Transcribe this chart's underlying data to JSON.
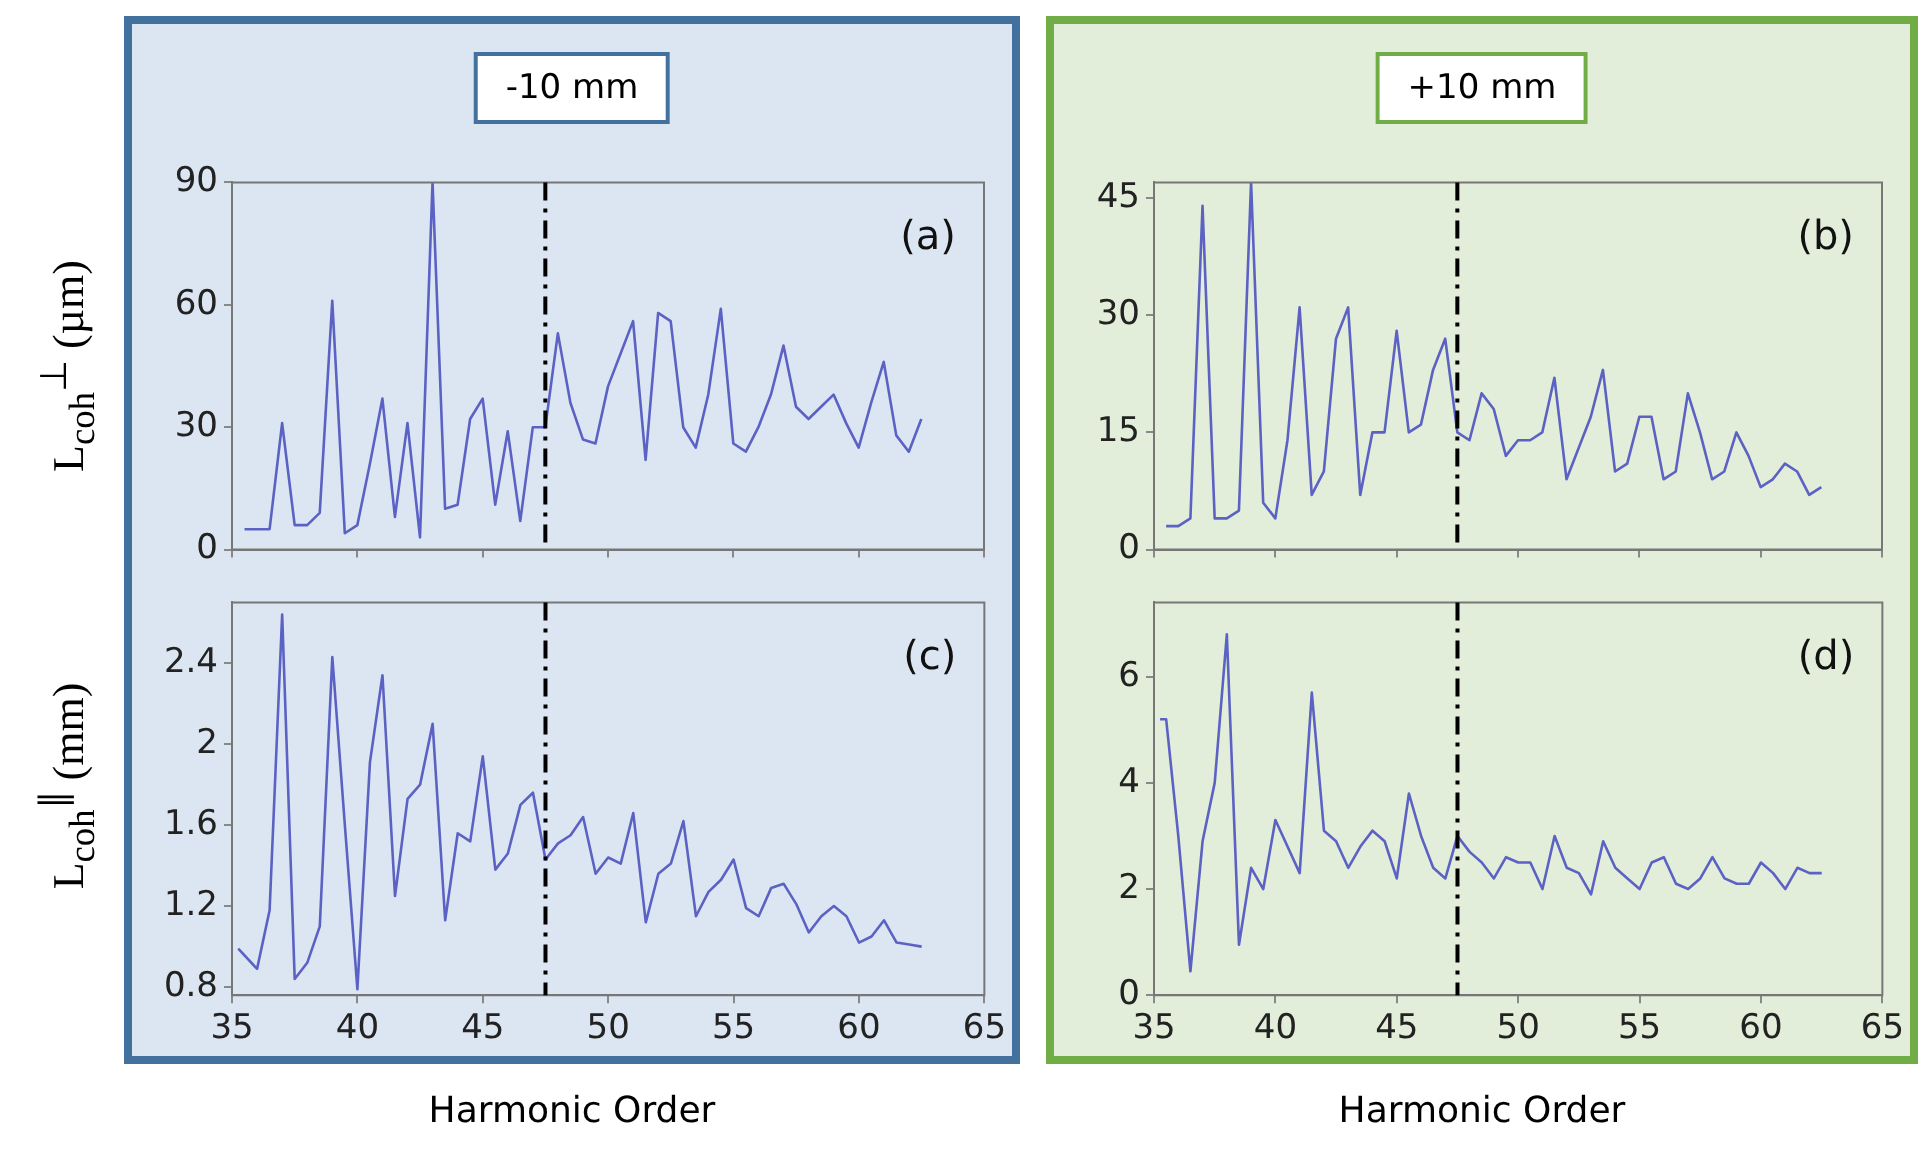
{
  "chart_data": [
    {
      "type": "line",
      "title": "-10 mm",
      "ylabel": "L$_{coh}$$^{⊥}$ (µm)",
      "annotations": [
        "(a)"
      ],
      "xlim": [
        35,
        65
      ],
      "xticks": [
        35,
        40,
        45,
        50,
        55,
        60,
        65
      ],
      "ylim": [
        0,
        90
      ],
      "yticks": [
        0,
        30,
        60,
        90
      ],
      "tick_labels": "y",
      "ref_lines": [
        {
          "axis": "x",
          "value": 47.5,
          "line_style": "dashed",
          "color": "#000000"
        }
      ],
      "x": [
        35.5,
        36,
        36.5,
        37,
        37.5,
        38,
        38.5,
        39,
        39.5,
        40,
        40.5,
        41,
        41.5,
        42,
        42.5,
        43,
        43.5,
        44,
        44.5,
        45,
        45.5,
        46,
        46.5,
        47,
        47.5,
        48,
        48.5,
        49,
        49.5,
        50,
        50.5,
        51,
        51.5,
        52,
        52.5,
        53,
        53.5,
        54,
        54.5,
        55,
        55.5,
        56,
        56.5,
        57,
        57.5,
        58,
        58.5,
        59,
        59.5,
        60,
        60.5,
        61,
        61.5,
        62,
        62.5
      ],
      "series": [
        {
          "color": "#5b62c4",
          "values": [
            5,
            5,
            5,
            31,
            6,
            6,
            9,
            61,
            4,
            6,
            21,
            37,
            8,
            31,
            3,
            90,
            10,
            11,
            32,
            37,
            11,
            29,
            7,
            30,
            30,
            53,
            36,
            27,
            26,
            40,
            48,
            56,
            22,
            58,
            56,
            30,
            25,
            38,
            59,
            26,
            24,
            30,
            38,
            50,
            35,
            32,
            35,
            38,
            31,
            25,
            36,
            46,
            28,
            24,
            32
          ]
        }
      ]
    },
    {
      "type": "line",
      "title": "+10 mm",
      "annotations": [
        "(b)"
      ],
      "xlim": [
        35,
        65
      ],
      "xticks": [
        35,
        40,
        45,
        50,
        55,
        60,
        65
      ],
      "ylim": [
        0,
        47
      ],
      "yticks": [
        0,
        15,
        30,
        45
      ],
      "tick_labels": "y",
      "ref_lines": [
        {
          "axis": "x",
          "value": 47.5,
          "line_style": "dashed",
          "color": "#000000"
        }
      ],
      "x": [
        35.5,
        36,
        36.5,
        37,
        37.5,
        38,
        38.5,
        39,
        39.5,
        40,
        40.5,
        41,
        41.5,
        42,
        42.5,
        43,
        43.5,
        44,
        44.5,
        45,
        45.5,
        46,
        46.5,
        47,
        47.5,
        48,
        48.5,
        49,
        49.5,
        50,
        50.5,
        51,
        51.5,
        52,
        52.5,
        53,
        53.5,
        54,
        54.5,
        55,
        55.5,
        56,
        56.5,
        57,
        57.5,
        58,
        58.5,
        59,
        59.5,
        60,
        60.5,
        61,
        61.5,
        62,
        62.5
      ],
      "series": [
        {
          "color": "#5b62c4",
          "values": [
            3,
            3,
            4,
            44,
            4,
            4,
            5,
            47,
            6,
            4,
            14,
            31,
            7,
            10,
            27,
            31,
            7,
            15,
            15,
            28,
            15,
            16,
            23,
            27,
            15,
            14,
            20,
            18,
            12,
            14,
            14,
            15,
            22,
            9,
            13,
            17,
            23,
            10,
            11,
            17,
            17,
            9,
            10,
            20,
            15,
            9,
            10,
            15,
            12,
            8,
            9,
            11,
            10,
            7,
            8
          ]
        }
      ]
    },
    {
      "type": "line",
      "ylabel": "L$_{coh}$$^{∥}$ (mm)",
      "xlabel": "Harmonic Order",
      "annotations": [
        "(c)"
      ],
      "xlim": [
        35,
        65
      ],
      "xticks": [
        35,
        40,
        45,
        50,
        55,
        60,
        65
      ],
      "ylim": [
        0.76,
        2.7
      ],
      "yticks": [
        0.8,
        1.2,
        1.6,
        2.0,
        2.4
      ],
      "ref_lines": [
        {
          "axis": "x",
          "value": 47.5,
          "line_style": "dashed",
          "color": "#000000"
        }
      ],
      "x": [
        35.25,
        36,
        36.5,
        37,
        37.5,
        38,
        38.5,
        39,
        39.5,
        40,
        40.5,
        41,
        41.5,
        42,
        42.5,
        43,
        43.5,
        44,
        44.5,
        45,
        45.5,
        46,
        46.5,
        47,
        47.5,
        48,
        48.5,
        49,
        49.5,
        50,
        50.5,
        51,
        51.5,
        52,
        52.5,
        53,
        53.5,
        54,
        54.5,
        55,
        55.5,
        56,
        56.5,
        57,
        57.5,
        58,
        58.5,
        59,
        59.5,
        60,
        60.5,
        61,
        61.5,
        62,
        62.5
      ],
      "series": [
        {
          "color": "#5b62c4",
          "values": [
            0.99,
            0.89,
            1.18,
            2.64,
            0.84,
            0.92,
            1.1,
            2.43,
            1.6,
            0.79,
            1.91,
            2.34,
            1.25,
            1.73,
            1.8,
            2.1,
            1.13,
            1.56,
            1.52,
            1.94,
            1.38,
            1.46,
            1.7,
            1.76,
            1.43,
            1.51,
            1.55,
            1.64,
            1.36,
            1.44,
            1.41,
            1.66,
            1.12,
            1.36,
            1.41,
            1.62,
            1.15,
            1.27,
            1.33,
            1.43,
            1.19,
            1.15,
            1.29,
            1.31,
            1.21,
            1.07,
            1.15,
            1.2,
            1.15,
            1.02,
            1.05,
            1.13,
            1.02,
            1.01,
            1.0
          ]
        }
      ]
    },
    {
      "type": "line",
      "xlabel": "Harmonic Order",
      "annotations": [
        "(d)"
      ],
      "xlim": [
        35,
        65
      ],
      "xticks": [
        35,
        40,
        45,
        50,
        55,
        60,
        65
      ],
      "ylim": [
        0,
        7.4
      ],
      "yticks": [
        0,
        2,
        4,
        6
      ],
      "ref_lines": [
        {
          "axis": "x",
          "value": 47.5,
          "line_style": "dashed",
          "color": "#000000"
        }
      ],
      "x": [
        35.25,
        35.5,
        36,
        36.5,
        37,
        37.5,
        38,
        38.5,
        39,
        39.5,
        40,
        40.5,
        41,
        41.5,
        42,
        42.5,
        43,
        43.5,
        44,
        44.5,
        45,
        45.5,
        46,
        46.5,
        47,
        47.5,
        48,
        48.5,
        49,
        49.5,
        50,
        50.5,
        51,
        51.5,
        52,
        52.5,
        53,
        53.5,
        54,
        54.5,
        55,
        55.5,
        56,
        56.5,
        57,
        57.5,
        58,
        58.5,
        59,
        59.5,
        60,
        60.5,
        61,
        61.5,
        62,
        62.5
      ],
      "series": [
        {
          "color": "#5b62c4",
          "values": [
            5.2,
            5.2,
            3.0,
            0.45,
            2.9,
            4.0,
            6.8,
            0.95,
            2.4,
            2.0,
            3.3,
            2.8,
            2.3,
            5.7,
            3.1,
            2.9,
            2.4,
            2.8,
            3.1,
            2.9,
            2.2,
            3.8,
            3.0,
            2.4,
            2.2,
            3.0,
            2.7,
            2.5,
            2.2,
            2.6,
            2.5,
            2.5,
            2.0,
            3.0,
            2.4,
            2.3,
            1.9,
            2.9,
            2.4,
            2.2,
            2.0,
            2.5,
            2.6,
            2.1,
            2.0,
            2.2,
            2.6,
            2.2,
            2.1,
            2.1,
            2.5,
            2.3,
            2.0,
            2.4,
            2.3,
            2.3
          ]
        }
      ]
    }
  ]
}
